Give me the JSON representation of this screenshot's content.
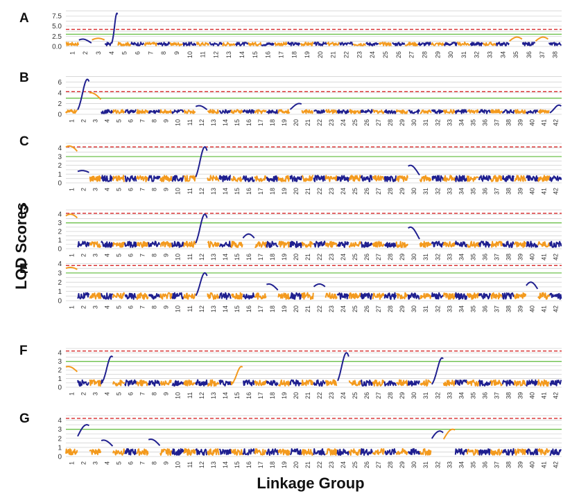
{
  "figure": {
    "ylabel": "LOD Scores",
    "xlabel": "Linkage Group"
  },
  "colors": {
    "series_a": "#f39a1e",
    "series_b": "#1f1f8f",
    "significance": "#d62728",
    "suggestive": "#6cc04a",
    "grid": "#d3d3d3"
  },
  "chart_data": [
    {
      "type": "line",
      "panel": "A",
      "ylim": [
        0,
        9.4
      ],
      "yticks": [
        "0.0",
        "2.5",
        "5.0",
        "7.5"
      ],
      "ytick_values": [
        0,
        2.5,
        5.0,
        7.5
      ],
      "threshold_red": 4.2,
      "threshold_green": 3.0,
      "linkage_groups": 38,
      "peaks": [
        {
          "lg": 4,
          "pos": 0.95,
          "height": 8.2,
          "width": 0.01
        },
        {
          "lg": 35,
          "pos": 0.6,
          "height": 2.3,
          "width": 0.03
        },
        {
          "lg": 37,
          "pos": 0.6,
          "height": 2.3,
          "width": 0.03
        },
        {
          "lg": 3,
          "pos": 0.5,
          "height": 2.0,
          "width": 0.04
        },
        {
          "lg": 2,
          "pos": 0.3,
          "height": 1.8,
          "width": 0.03
        }
      ],
      "base": 0.6
    },
    {
      "type": "line",
      "panel": "B",
      "ylim": [
        0,
        7.2
      ],
      "yticks": [
        "0",
        "2",
        "4",
        "6"
      ],
      "ytick_values": [
        0,
        2,
        4,
        6
      ],
      "threshold_red": 4.2,
      "threshold_green": 3.0,
      "linkage_groups": 42,
      "peaks": [
        {
          "lg": 2,
          "pos": 0.85,
          "height": 6.5,
          "width": 0.02
        },
        {
          "lg": 3,
          "pos": 0.1,
          "height": 4.0,
          "width": 0.05
        },
        {
          "lg": 12,
          "pos": 0.3,
          "height": 1.6,
          "width": 0.03
        },
        {
          "lg": 20,
          "pos": 0.8,
          "height": 2.0,
          "width": 0.03
        },
        {
          "lg": 42,
          "pos": 0.8,
          "height": 1.7,
          "width": 0.02
        }
      ],
      "base": 0.5
    },
    {
      "type": "line",
      "panel": "C",
      "ylim": [
        0,
        4.5
      ],
      "yticks": [
        "0",
        "1",
        "2",
        "3",
        "4"
      ],
      "ytick_values": [
        0,
        1,
        2,
        3,
        4
      ],
      "threshold_red": 4.1,
      "threshold_green": 3.0,
      "linkage_groups": 42,
      "peaks": [
        {
          "lg": 1,
          "pos": 0.3,
          "height": 4.2,
          "width": 0.06
        },
        {
          "lg": 12,
          "pos": 0.8,
          "height": 4.1,
          "width": 0.02
        },
        {
          "lg": 30,
          "pos": 0.2,
          "height": 2.0,
          "width": 0.03
        },
        {
          "lg": 2,
          "pos": 0.4,
          "height": 1.4,
          "width": 0.05
        }
      ],
      "base": 0.5
    },
    {
      "type": "line",
      "panel": "D",
      "ylim": [
        0,
        4.5
      ],
      "yticks": [
        "0",
        "1",
        "2",
        "3",
        "4"
      ],
      "ytick_values": [
        0,
        1,
        2,
        3,
        4
      ],
      "threshold_red": 4.1,
      "threshold_green": 3.0,
      "linkage_groups": 42,
      "peaks": [
        {
          "lg": 1,
          "pos": 0.4,
          "height": 4.0,
          "width": 0.06
        },
        {
          "lg": 12,
          "pos": 0.8,
          "height": 4.0,
          "width": 0.02
        },
        {
          "lg": 30,
          "pos": 0.2,
          "height": 2.5,
          "width": 0.03
        },
        {
          "lg": 16,
          "pos": 0.5,
          "height": 1.7,
          "width": 0.03
        }
      ],
      "base": 0.5
    },
    {
      "type": "line",
      "panel": "E",
      "ylim": [
        0,
        4.2
      ],
      "yticks": [
        "0",
        "1",
        "2",
        "3",
        "4"
      ],
      "ytick_values": [
        0,
        1,
        2,
        3,
        4
      ],
      "threshold_red": 3.8,
      "threshold_green": 3.0,
      "linkage_groups": 42,
      "peaks": [
        {
          "lg": 1,
          "pos": 0.4,
          "height": 3.6,
          "width": 0.08
        },
        {
          "lg": 12,
          "pos": 0.8,
          "height": 3.0,
          "width": 0.02
        },
        {
          "lg": 18,
          "pos": 0.2,
          "height": 1.8,
          "width": 0.04
        },
        {
          "lg": 22,
          "pos": 0.5,
          "height": 1.8,
          "width": 0.04
        },
        {
          "lg": 40,
          "pos": 0.4,
          "height": 2.0,
          "width": 0.03
        }
      ],
      "base": 0.5
    },
    {
      "type": "line",
      "panel": "F",
      "ylim": [
        0,
        4.5
      ],
      "yticks": [
        "0",
        "1",
        "2",
        "3",
        "4"
      ],
      "ytick_values": [
        0,
        1,
        2,
        3,
        4
      ],
      "threshold_red": 4.2,
      "threshold_green": 3.0,
      "linkage_groups": 42,
      "peaks": [
        {
          "lg": 4,
          "pos": 0.9,
          "height": 3.6,
          "width": 0.02
        },
        {
          "lg": 24,
          "pos": 0.8,
          "height": 4.0,
          "width": 0.02
        },
        {
          "lg": 32,
          "pos": 0.9,
          "height": 3.4,
          "width": 0.02
        },
        {
          "lg": 1,
          "pos": 0.2,
          "height": 2.4,
          "width": 0.05
        },
        {
          "lg": 15,
          "pos": 0.9,
          "height": 2.4,
          "width": 0.02
        }
      ],
      "base": 0.5
    },
    {
      "type": "line",
      "panel": "G",
      "ylim": [
        0,
        4.5
      ],
      "yticks": [
        "0",
        "1",
        "2",
        "3",
        "4"
      ],
      "ytick_values": [
        0,
        1,
        2,
        3,
        4
      ],
      "threshold_red": 4.2,
      "threshold_green": 3.0,
      "linkage_groups": 42,
      "peaks": [
        {
          "lg": 2,
          "pos": 0.8,
          "height": 3.5,
          "width": 0.04
        },
        {
          "lg": 32,
          "pos": 0.7,
          "height": 2.8,
          "width": 0.04
        },
        {
          "lg": 33,
          "pos": 0.8,
          "height": 3.0,
          "width": 0.04
        },
        {
          "lg": 4,
          "pos": 0.2,
          "height": 1.8,
          "width": 0.04
        },
        {
          "lg": 8,
          "pos": 0.2,
          "height": 1.9,
          "width": 0.04
        }
      ],
      "base": 0.5
    }
  ]
}
